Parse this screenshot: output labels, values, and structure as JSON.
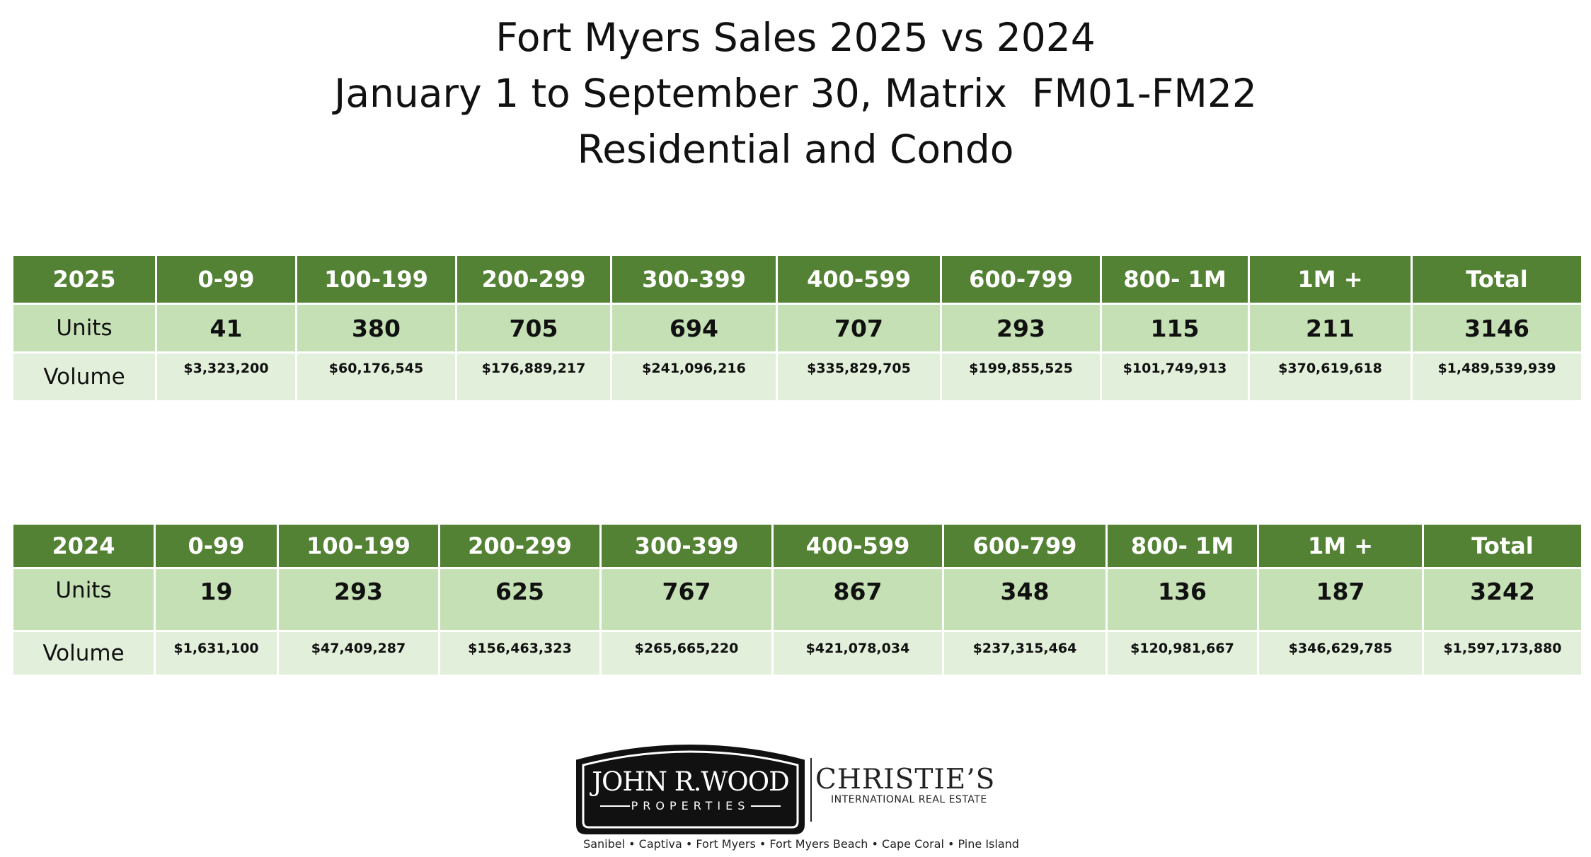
{
  "title": {
    "line1": "Fort Myers Sales 2025 vs 2024",
    "line2": "January 1 to September 30, Matrix  FM01-FM22",
    "line3": "Residential and Condo"
  },
  "tables": [
    {
      "year": "2025",
      "columns": [
        "0-99",
        "100-199",
        "200-299",
        "300-399",
        "400-599",
        "600-799",
        "800- 1M",
        "1M +",
        "Total"
      ],
      "units_label": "Units",
      "units": [
        "41",
        "380",
        "705",
        "694",
        "707",
        "293",
        "115",
        "211",
        "3146"
      ],
      "volume_label": "Volume",
      "volume": [
        "$3,323,200",
        "$60,176,545",
        "$176,889,217",
        "$241,096,216",
        "$335,829,705",
        "$199,855,525",
        "$101,749,913",
        "$370,619,618",
        "$1,489,539,939"
      ]
    },
    {
      "year": "2024",
      "columns": [
        "0-99",
        "100-199",
        "200-299",
        "300-399",
        "400-599",
        "600-799",
        "800- 1M",
        "1M +",
        "Total"
      ],
      "units_label": "Units",
      "units": [
        "19",
        "293",
        "625",
        "767",
        "867",
        "348",
        "136",
        "187",
        "3242"
      ],
      "volume_label": "Volume",
      "volume": [
        "$1,631,100",
        "$47,409,287",
        "$156,463,323",
        "$265,665,220",
        "$421,078,034",
        "$237,315,464",
        "$120,981,667",
        "$346,629,785",
        "$1,597,173,880"
      ]
    }
  ],
  "logo": {
    "badge_name": "JOHN R.WOOD",
    "badge_sub": "PROPERTIES",
    "partner": "CHRISTIE’S",
    "partner_sub": "INTERNATIONAL REAL ESTATE",
    "locations": "Sanibel • Captiva • Fort Myers • Fort Myers Beach • Cape Coral • Pine Island"
  },
  "colors": {
    "header_green": "#548235",
    "units_green": "#c5e0b4",
    "volume_green": "#e2efda"
  }
}
